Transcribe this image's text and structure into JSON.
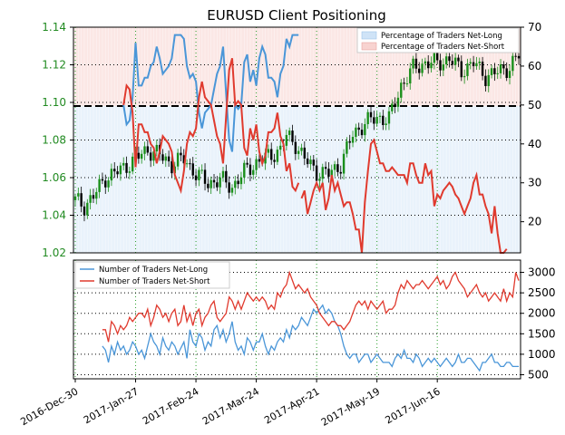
{
  "chart_data": [
    {
      "type": "line",
      "title": "EURUSD Client Positioning",
      "xlabel": "",
      "ylabel": "",
      "x_tick_labels": [
        "2016-Dec-30",
        "2017-Jan-27",
        "2017-Feb-24",
        "2017-Mar-24",
        "2017-Apr-21",
        "2017-May-19",
        "2017-Jun-16"
      ],
      "ylim": [
        1.02,
        1.14
      ],
      "y_ticks": [
        "1.02",
        "1.04",
        "1.06",
        "1.08",
        "1.10",
        "1.12",
        "1.14"
      ],
      "y2lim": [
        12,
        70
      ],
      "y2_ticks": [
        "20",
        "30",
        "40",
        "50",
        "60",
        "70"
      ],
      "legend": [
        "Percentage of Traders Net-Long",
        "Percentage of Traders Net-Short"
      ],
      "legend_position": "top-right",
      "grid": true,
      "reference_line": 50,
      "colors": {
        "title": "#000000",
        "left_axis": "#228b22",
        "bull": "#1a8f1a",
        "bear": "#000000",
        "pct_long": "#4a96d8",
        "pct_long_fill": "#cfe3f7",
        "pct_short": "#e03a2e",
        "pct_short_fill": "#f8d3d0",
        "grid": "#2ca02c"
      },
      "series": [
        {
          "name": "Percentage of Traders Net-Short",
          "values": [
            50,
            55,
            54,
            48,
            34,
            45,
            45,
            43,
            43,
            40,
            39,
            35,
            38,
            42,
            41,
            40,
            38,
            32,
            30,
            28,
            33,
            40,
            43,
            42,
            44,
            52,
            56,
            52,
            51,
            50,
            46,
            42,
            40,
            35,
            47,
            59,
            62,
            50,
            51,
            50,
            39,
            37,
            44,
            41,
            45,
            38,
            35,
            37,
            43,
            43,
            44,
            48,
            42,
            40,
            33,
            35,
            29,
            28,
            30,
            26,
            28,
            22,
            25,
            28,
            30,
            28,
            30,
            23,
            26,
            32,
            28,
            30,
            27,
            24,
            25,
            25,
            22,
            18,
            18,
            12,
            25,
            33,
            40,
            41,
            38,
            35,
            35,
            33,
            33,
            34,
            33,
            32,
            32,
            32,
            30,
            35,
            35,
            32,
            30,
            30,
            35,
            32,
            33,
            24,
            27,
            26,
            28,
            29,
            30,
            29,
            27,
            26,
            24,
            22,
            24,
            26,
            30,
            32,
            27,
            27,
            24,
            22,
            17,
            24,
            17,
            12,
            12,
            13
          ],
          "cols": [
            16,
            17,
            18,
            19,
            20,
            21,
            22,
            23,
            24,
            25,
            26,
            27,
            28,
            29,
            30,
            31,
            32,
            33,
            34,
            35,
            36,
            37,
            38,
            39,
            40,
            41,
            42,
            43,
            44,
            45,
            46,
            47,
            48,
            49,
            50,
            51,
            52,
            53,
            54,
            55,
            56,
            57,
            58,
            59,
            60,
            61,
            62,
            63,
            64,
            65,
            66,
            67,
            68,
            69,
            70,
            71,
            72,
            73,
            74,
            75,
            76,
            77,
            78,
            79,
            80,
            81,
            82,
            83,
            84,
            85,
            86,
            87,
            88,
            89,
            90,
            91,
            92,
            93,
            94,
            95,
            96,
            97,
            98,
            99,
            100,
            101,
            102,
            103,
            104,
            105,
            106,
            107,
            108,
            109,
            110,
            111,
            112,
            113,
            114,
            115,
            116,
            117,
            118,
            119,
            120,
            121,
            122,
            123,
            124,
            125,
            126,
            127,
            128,
            129,
            130,
            131,
            132,
            133,
            134,
            135,
            136,
            137,
            138,
            139,
            140,
            141,
            142,
            143
          ],
          "note": "plotted as two segments"
        }
      ]
    },
    {
      "type": "line",
      "x_tick_labels": [
        "2016-Dec-30",
        "2017-Jan-27",
        "2017-Feb-24",
        "2017-Mar-24",
        "2017-Apr-21",
        "2017-May-19",
        "2017-Jun-16"
      ],
      "ylim": [
        400,
        3300
      ],
      "y_ticks": [
        "500",
        "1000",
        "1500",
        "2000",
        "2500",
        "3000"
      ],
      "legend": [
        "Number of Traders Net-Long",
        "Number of Traders Net-Short"
      ],
      "legend_position": "top-left",
      "grid": true,
      "colors": {
        "long": "#4a96d8",
        "short": "#e03a2e",
        "grid": "#2ca02c"
      },
      "series": [
        {
          "name": "Number of Traders Net-Long",
          "values": [
            1200,
            1100,
            800,
            1200,
            1000,
            1300,
            1100,
            1200,
            1000,
            1100,
            1300,
            1200,
            1000,
            1100,
            900,
            1200,
            1500,
            1300,
            1200,
            1000,
            1400,
            1200,
            1100,
            1300,
            1200,
            1000,
            1150,
            1300,
            900,
            1600,
            1300,
            1200,
            1500,
            1400,
            1100,
            1300,
            1200,
            1600,
            1700,
            1400,
            1600,
            1300,
            1500,
            1800,
            1300,
            1100,
            1200,
            1000,
            1400,
            1300,
            1100,
            1300,
            1300,
            1500,
            1200,
            1000,
            1200,
            1100,
            1300,
            1400,
            1300,
            1600,
            1400,
            1700,
            1600,
            1700,
            1900,
            1800,
            1700,
            1900,
            2100,
            2000,
            2100,
            2200,
            2000,
            2100,
            2000,
            1800,
            1700,
            1500,
            1200,
            1000,
            900,
            1000,
            1000,
            800,
            900,
            1000,
            1000,
            800,
            900,
            1000,
            900,
            800,
            800,
            800,
            700,
            900,
            1000,
            900,
            1100,
            900,
            900,
            800,
            1000,
            900,
            700,
            800,
            900,
            800,
            900,
            800,
            700,
            800,
            900,
            800,
            700,
            800,
            1000,
            800,
            800,
            900,
            900,
            800,
            700,
            600,
            800,
            800,
            900,
            1000,
            800,
            800,
            700,
            700,
            800,
            800,
            700,
            700,
            700
          ],
          "start_col": 9
        },
        {
          "name": "Number of Traders Net-Short",
          "values": [
            1600,
            1600,
            1300,
            1800,
            1700,
            1500,
            1700,
            1600,
            1700,
            1900,
            1800,
            1900,
            2000,
            2000,
            1900,
            2100,
            1700,
            1900,
            2200,
            2100,
            1900,
            2000,
            1800,
            2000,
            2100,
            1700,
            1800,
            2200,
            1800,
            2000,
            1700,
            2000,
            2100,
            1700,
            1900,
            2000,
            2200,
            2300,
            1900,
            1800,
            1900,
            2000,
            2400,
            2300,
            2100,
            2300,
            2100,
            2300,
            2500,
            2400,
            2300,
            2400,
            2300,
            2400,
            2300,
            2100,
            2200,
            2100,
            2500,
            2400,
            2600,
            2700,
            3000,
            2800,
            2600,
            2700,
            2600,
            2500,
            2600,
            2400,
            2300,
            2200,
            2000,
            1900,
            1800,
            1700,
            1800,
            1800,
            1700,
            1700,
            1600,
            1700,
            1800,
            2000,
            2200,
            2300,
            2200,
            2300,
            2100,
            2300,
            2200,
            2100,
            2200,
            2300,
            2000,
            2100,
            2100,
            2200,
            2500,
            2700,
            2600,
            2800,
            2700,
            2600,
            2700,
            2700,
            2800,
            2700,
            2600,
            2700,
            2800,
            2900,
            2700,
            2800,
            2600,
            2700,
            2900,
            3000,
            2800,
            2700,
            2600,
            2400,
            2500,
            2600,
            2700,
            2500,
            2400,
            2500,
            2300,
            2400,
            2500,
            2400,
            2300,
            2600,
            2300,
            2500,
            2400,
            3000,
            2800
          ],
          "start_col": 9
        }
      ]
    }
  ]
}
